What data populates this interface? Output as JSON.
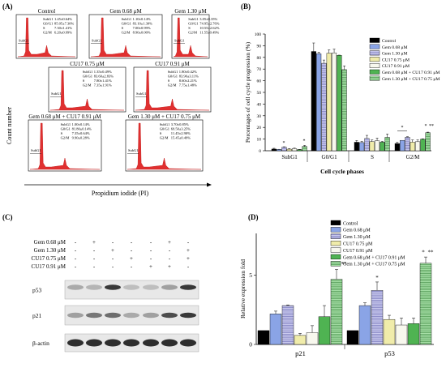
{
  "panels": {
    "a": "(A)",
    "b": "(B)",
    "c": "(C)",
    "d": "(D)"
  },
  "flow": {
    "ylabel": "Count number",
    "xlabel": "Propidium iodide (PI)",
    "subg1_tag": "SubG1",
    "histograms": [
      {
        "title": "Control",
        "stats": [
          [
            "SubG1",
            "1.45±0.64%"
          ],
          [
            "G0/G1",
            "85.05±7.30%"
          ],
          [
            "S",
            "7.30±1.41%"
          ],
          [
            "G2/M",
            "6.20±0.99%"
          ]
        ]
      },
      {
        "title": "Gem 0.68 μM",
        "stats": [
          [
            "SubG1",
            "1.10±0.14%"
          ],
          [
            "G0/G1",
            "83.10±1.30%"
          ],
          [
            "S",
            "7.00±0.99%"
          ],
          [
            "G2/M",
            "8.90±0.00%"
          ]
        ]
      },
      {
        "title": "Gem 1.30 μM",
        "stats": [
          [
            "SubG1",
            "3.05±0.35%"
          ],
          [
            "G0/G1",
            "74.95±2.76%"
          ],
          [
            "S",
            "10.55±2.62%"
          ],
          [
            "G2/M",
            "11.55±0.49%"
          ]
        ]
      },
      {
        "title": "CU17 0.75 μM",
        "stats": [
          [
            "SubG1",
            "1.35±0.49%"
          ],
          [
            "G0/G1",
            "83.60±2.83%"
          ],
          [
            "S",
            "7.80±1.41%"
          ],
          [
            "G2/M",
            "7.35±1.91%"
          ]
        ]
      },
      {
        "title": "CU17 0.91 μM",
        "stats": [
          [
            "SubG1",
            "1.80±0.42%"
          ],
          [
            "G0/G1",
            "83.90±3.11%"
          ],
          [
            "S",
            "8.60±2.21%"
          ],
          [
            "G2/M",
            "7.75±1.48%"
          ]
        ]
      },
      {
        "title": "Gem 0.68 μM + CU17 0.91 μM",
        "stats": [
          [
            "SubG1",
            "1.00±0.14%"
          ],
          [
            "G0/G1",
            "81.80±0.14%"
          ],
          [
            "S",
            "7.35±0.64%"
          ],
          [
            "G2/M",
            "9.90±0.28%"
          ]
        ]
      },
      {
        "title": "Gem 1.30 μM + CU17 0.75 μM",
        "stats": [
          [
            "SubG1",
            "3.70±0.85%"
          ],
          [
            "G0/G1",
            "69.50±3.25%"
          ],
          [
            "S",
            "11.45±2.90%"
          ],
          [
            "G2/M",
            "15.45±0.49%"
          ]
        ]
      }
    ]
  },
  "western": {
    "rows": [
      "Gem 0.68 μM",
      "Gem 1.30 μM",
      "CU17 0.75 μM",
      "CU17 0.91 μM"
    ],
    "signs": [
      [
        "-",
        "+",
        "-",
        "-",
        "-",
        "+",
        "-"
      ],
      [
        "-",
        "-",
        "+",
        "-",
        "-",
        "-",
        "+"
      ],
      [
        "-",
        "-",
        "-",
        "+",
        "-",
        "-",
        "+"
      ],
      [
        "-",
        "-",
        "-",
        "-",
        "+",
        "+",
        "-"
      ]
    ],
    "bands": [
      "p53",
      "p21",
      "β-actin"
    ]
  },
  "colors": {
    "control": "#000000",
    "gem068": "#8aa4e6",
    "gem130": "#ccccf0",
    "cu17_075": "#f0ecaa",
    "cu17_091": "#f8f8ee",
    "combo1": "#4fb352",
    "combo2": "#a8e0a8",
    "histogram": "#e03030"
  },
  "chart_data": [
    {
      "type": "bar",
      "title": "",
      "xlabel": "Cell cycle phases",
      "ylabel": "Percentages of cell cycle progression (%)",
      "ylim": [
        0,
        100
      ],
      "yticks": [
        0,
        10,
        20,
        30,
        40,
        50,
        60,
        70,
        80,
        90,
        100
      ],
      "categories": [
        "SubG1",
        "G0/G1",
        "S",
        "G2/M"
      ],
      "series": [
        {
          "name": "Control",
          "values": [
            1.45,
            85.05,
            7.3,
            6.2
          ],
          "errors": [
            0.64,
            7.3,
            1.41,
            0.99
          ]
        },
        {
          "name": "Gem 0.68 μM",
          "values": [
            1.1,
            83.1,
            7.0,
            8.9
          ],
          "errors": [
            0.14,
            1.3,
            0.99,
            0.0
          ]
        },
        {
          "name": "Gem 1.30 μM",
          "values": [
            3.05,
            74.95,
            10.55,
            11.55
          ],
          "errors": [
            0.35,
            2.76,
            2.62,
            0.49
          ]
        },
        {
          "name": "CU17 0.75 μM",
          "values": [
            1.35,
            83.6,
            7.8,
            7.35
          ],
          "errors": [
            0.49,
            2.83,
            1.41,
            1.91
          ]
        },
        {
          "name": "CU17 0.91 μM",
          "values": [
            1.8,
            83.9,
            8.6,
            7.75
          ],
          "errors": [
            0.42,
            3.11,
            2.21,
            1.48
          ]
        },
        {
          "name": "Gem 0.68 μM + CU17 0.91 μM",
          "values": [
            1.0,
            81.8,
            7.35,
            9.9
          ],
          "errors": [
            0.14,
            0.14,
            0.64,
            0.28
          ]
        },
        {
          "name": "Gem 1.30 μM + CU17 0.75 μM",
          "values": [
            3.7,
            69.5,
            11.45,
            15.45
          ],
          "errors": [
            0.85,
            3.25,
            2.9,
            0.49
          ]
        }
      ],
      "annotations": [
        "*",
        "*",
        "*",
        "*",
        "**"
      ],
      "legend_position": "top-right"
    },
    {
      "type": "bar",
      "title": "",
      "xlabel": "",
      "ylabel": "Relative expression fold",
      "ylim": [
        0,
        8
      ],
      "yticks": [
        0,
        5
      ],
      "categories": [
        "p21",
        "p53"
      ],
      "series": [
        {
          "name": "Control",
          "values": [
            1.0,
            1.0
          ],
          "errors": [
            0,
            0
          ]
        },
        {
          "name": "Gem 0.68 μM",
          "values": [
            2.2,
            2.8
          ],
          "errors": [
            0.2,
            0.2
          ]
        },
        {
          "name": "Gem 1.30 μM",
          "values": [
            2.8,
            3.9
          ],
          "errors": [
            0.05,
            0.6
          ]
        },
        {
          "name": "CU17 0.75 μM",
          "values": [
            0.65,
            1.8
          ],
          "errors": [
            0.15,
            0.3
          ]
        },
        {
          "name": "CU17 0.91 μM",
          "values": [
            0.85,
            1.4
          ],
          "errors": [
            0.5,
            0.5
          ]
        },
        {
          "name": "Gem 0.68 μM + CU17 0.91 μM",
          "values": [
            2.0,
            1.5
          ],
          "errors": [
            0.8,
            0.4
          ]
        },
        {
          "name": "Gem 1.30 μM + CU17 0.75 μM",
          "values": [
            4.7,
            5.85
          ],
          "errors": [
            0.7,
            0.45
          ]
        }
      ],
      "annotations": [
        "*",
        "**",
        "*",
        "*",
        "**"
      ],
      "legend_position": "top-left"
    }
  ]
}
